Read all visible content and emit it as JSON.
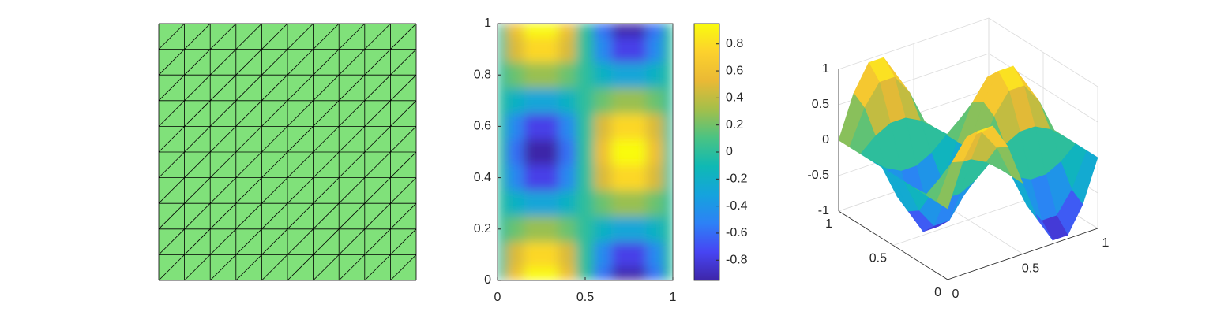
{
  "chart_data": [
    {
      "type": "mesh",
      "color": "#80e17a",
      "edge_color": "#000000"
    },
    {
      "type": "heatmap",
      "x": [
        0,
        0.1,
        0.2,
        0.3,
        0.4,
        0.5,
        0.6,
        0.7,
        0.8,
        0.9,
        1
      ],
      "y": [
        0,
        0.1,
        0.2,
        0.3,
        0.4,
        0.5,
        0.6,
        0.7,
        0.8,
        0.9,
        1
      ],
      "z": [
        [
          0,
          0.59,
          0.95,
          0.95,
          0.59,
          0,
          -0.59,
          -0.95,
          -0.95,
          -0.59,
          0
        ],
        [
          0,
          0.48,
          0.77,
          0.77,
          0.48,
          0,
          -0.48,
          -0.77,
          -0.77,
          -0.48,
          0
        ],
        [
          0,
          0.18,
          0.29,
          0.29,
          0.18,
          0,
          -0.18,
          -0.29,
          -0.29,
          -0.18,
          0
        ],
        [
          0,
          -0.18,
          -0.29,
          -0.29,
          -0.18,
          0,
          0.18,
          0.29,
          0.29,
          0.18,
          0
        ],
        [
          0,
          -0.48,
          -0.77,
          -0.77,
          -0.48,
          0,
          0.48,
          0.77,
          0.77,
          0.48,
          0
        ],
        [
          0,
          -0.59,
          -0.95,
          -0.95,
          -0.59,
          0,
          0.59,
          0.95,
          0.95,
          0.59,
          0
        ],
        [
          0,
          -0.48,
          -0.77,
          -0.77,
          -0.48,
          0,
          0.48,
          0.77,
          0.77,
          0.48,
          0
        ],
        [
          0,
          -0.18,
          -0.29,
          -0.29,
          -0.18,
          0,
          0.18,
          0.29,
          0.29,
          0.18,
          0
        ],
        [
          0,
          0.18,
          0.29,
          0.29,
          0.18,
          0,
          -0.18,
          -0.29,
          -0.29,
          -0.18,
          0
        ],
        [
          0,
          0.48,
          0.77,
          0.77,
          0.48,
          0,
          -0.48,
          -0.77,
          -0.77,
          -0.48,
          0
        ],
        [
          0,
          0.59,
          0.95,
          0.95,
          0.59,
          0,
          -0.59,
          -0.95,
          -0.95,
          -0.59,
          0
        ]
      ],
      "xlim": [
        0,
        1
      ],
      "ylim": [
        0,
        1
      ],
      "xticks": [
        0,
        0.5,
        1
      ],
      "yticks": [
        0,
        0.2,
        0.4,
        0.6,
        0.8,
        1
      ],
      "clim": [
        -0.95,
        0.95
      ],
      "colorbar_ticks": [
        -0.8,
        -0.6,
        -0.4,
        -0.2,
        0,
        0.2,
        0.4,
        0.6,
        0.8
      ],
      "colormap": [
        "#3e26a8",
        "#4745f3",
        "#2d81f6",
        "#15a3dd",
        "#0fb9b4",
        "#4ac383",
        "#a4bf4a",
        "#eab935",
        "#fcd12d",
        "#f9fb0e"
      ]
    },
    {
      "type": "surface",
      "xlim": [
        0,
        1
      ],
      "ylim": [
        0,
        1
      ],
      "zlim": [
        -1,
        1
      ],
      "xticks": [
        0,
        0.5,
        1
      ],
      "yticks": [
        0,
        0.5,
        1
      ],
      "zticks": [
        -1,
        -0.5,
        0,
        0.5,
        1
      ],
      "grid": true
    }
  ]
}
